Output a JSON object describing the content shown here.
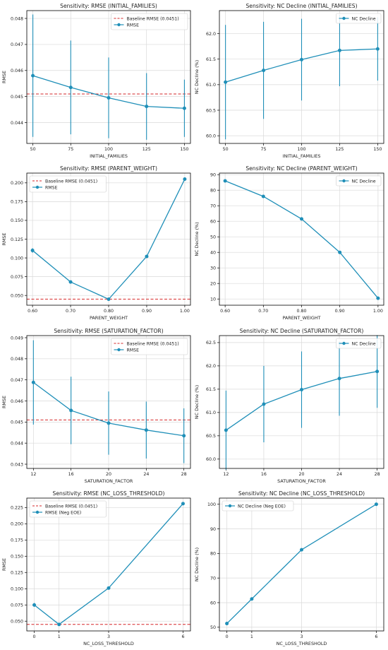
{
  "colors": {
    "line": "#1f8fb8",
    "baseline": "#d62728",
    "grid": "#d9d9d9",
    "axis": "#000000"
  },
  "chart_data": [
    {
      "type": "line",
      "title": "Sensitivity: RMSE (INITIAL_FAMILIES)",
      "xlabel": "INITIAL_FAMILIES",
      "ylabel": "RMSE",
      "x": [
        50,
        75,
        100,
        125,
        150
      ],
      "xticks": [
        50,
        75,
        100,
        125,
        150
      ],
      "xlim": [
        46,
        154
      ],
      "ylim": [
        0.0432,
        0.0483
      ],
      "yticks": [
        0.044,
        0.045,
        0.046,
        0.047,
        0.048
      ],
      "ytick_labels": [
        "0.044",
        "0.045",
        "0.046",
        "0.047",
        "0.048"
      ],
      "grid": true,
      "legend": "top-right",
      "baseline": {
        "value": 0.0451,
        "label": "Baseline RMSE (0.0451)"
      },
      "series": [
        {
          "name": "RMSE",
          "values": [
            0.0458,
            0.04535,
            0.04495,
            0.04462,
            0.04455
          ],
          "errors": [
            0.00235,
            0.0018,
            0.00155,
            0.00128,
            0.0011
          ]
        }
      ]
    },
    {
      "type": "line",
      "title": "Sensitivity: NC Decline (INITIAL_FAMILIES)",
      "xlabel": "INITIAL_FAMILIES",
      "ylabel": "NC Decline (%)",
      "x": [
        50,
        75,
        100,
        125,
        150
      ],
      "xticks": [
        50,
        75,
        100,
        125,
        150
      ],
      "xlim": [
        46,
        154
      ],
      "ylim": [
        59.85,
        62.45
      ],
      "yticks": [
        60.0,
        60.5,
        61.0,
        61.5,
        62.0
      ],
      "ytick_labels": [
        "60.0",
        "60.5",
        "61.0",
        "61.5",
        "62.0"
      ],
      "grid": true,
      "legend": "top-right",
      "series": [
        {
          "name": "NC Decline",
          "values": [
            61.05,
            61.28,
            61.49,
            61.67,
            61.7
          ],
          "errors": [
            1.12,
            0.95,
            0.8,
            0.7,
            0.62
          ]
        }
      ]
    },
    {
      "type": "line",
      "title": "Sensitivity: RMSE (PARENT_WEIGHT)",
      "xlabel": "PARENT_WEIGHT",
      "ylabel": "RMSE",
      "x": [
        0.6,
        0.7,
        0.8,
        0.9,
        1.0
      ],
      "xticks": [
        0.6,
        0.7,
        0.8,
        0.9,
        1.0
      ],
      "xtick_labels": [
        "0.60",
        "0.70",
        "0.80",
        "0.90",
        "1.00"
      ],
      "xlim": [
        0.585,
        1.015
      ],
      "ylim": [
        0.037,
        0.213
      ],
      "yticks": [
        0.05,
        0.075,
        0.1,
        0.125,
        0.15,
        0.175,
        0.2
      ],
      "ytick_labels": [
        "0.050",
        "0.075",
        "0.100",
        "0.125",
        "0.150",
        "0.175",
        "0.200"
      ],
      "grid": true,
      "legend": "top-left",
      "baseline": {
        "value": 0.0451,
        "label": "Baseline RMSE (0.0451)"
      },
      "series": [
        {
          "name": "RMSE",
          "values": [
            0.11,
            0.068,
            0.045,
            0.102,
            0.205
          ],
          "errors": [
            0.003,
            0.002,
            0.001,
            0.002,
            0.002
          ]
        }
      ]
    },
    {
      "type": "line",
      "title": "Sensitivity: NC Decline (PARENT_WEIGHT)",
      "xlabel": "PARENT_WEIGHT",
      "ylabel": "NC Decline (%)",
      "x": [
        0.6,
        0.7,
        0.8,
        0.9,
        1.0
      ],
      "xticks": [
        0.6,
        0.7,
        0.8,
        0.9,
        1.0
      ],
      "xtick_labels": [
        "0.60",
        "0.70",
        "0.80",
        "0.90",
        "1.00"
      ],
      "xlim": [
        0.585,
        1.015
      ],
      "ylim": [
        6,
        91
      ],
      "yticks": [
        10,
        20,
        30,
        40,
        50,
        60,
        70,
        80,
        90
      ],
      "ytick_labels": [
        "10",
        "20",
        "30",
        "40",
        "50",
        "60",
        "70",
        "80",
        "90"
      ],
      "grid": true,
      "legend": "top-right",
      "series": [
        {
          "name": "NC Decline",
          "values": [
            86,
            76,
            61.5,
            40,
            10.5
          ]
        }
      ]
    },
    {
      "type": "line",
      "title": "Sensitivity: RMSE (SATURATION_FACTOR)",
      "xlabel": "SATURATION_FACTOR",
      "ylabel": "RMSE",
      "x": [
        12,
        16,
        20,
        24,
        28
      ],
      "xticks": [
        12,
        16,
        20,
        24,
        28
      ],
      "xlim": [
        11.3,
        28.7
      ],
      "ylim": [
        0.0428,
        0.0491
      ],
      "yticks": [
        0.043,
        0.044,
        0.045,
        0.046,
        0.047,
        0.048,
        0.049
      ],
      "ytick_labels": [
        "0.043",
        "0.044",
        "0.045",
        "0.046",
        "0.047",
        "0.048",
        "0.049"
      ],
      "grid": true,
      "legend": "top-right",
      "baseline": {
        "value": 0.0451,
        "label": "Baseline RMSE (0.0451)"
      },
      "series": [
        {
          "name": "RMSE",
          "values": [
            0.04688,
            0.04555,
            0.04495,
            0.04462,
            0.04435
          ],
          "errors": [
            0.002,
            0.0016,
            0.0015,
            0.00135,
            0.0013
          ]
        }
      ]
    },
    {
      "type": "line",
      "title": "Sensitivity: NC Decline (SATURATION_FACTOR)",
      "xlabel": "SATURATION_FACTOR",
      "ylabel": "NC Decline (%)",
      "x": [
        12,
        16,
        20,
        24,
        28
      ],
      "xticks": [
        12,
        16,
        20,
        24,
        28
      ],
      "xlim": [
        11.3,
        28.7
      ],
      "ylim": [
        59.8,
        62.65
      ],
      "yticks": [
        60.0,
        60.5,
        61.0,
        61.5,
        62.0,
        62.5
      ],
      "ytick_labels": [
        "60.0",
        "60.5",
        "61.0",
        "61.5",
        "62.0",
        "62.5"
      ],
      "grid": true,
      "legend": "top-right",
      "series": [
        {
          "name": "NC Decline",
          "values": [
            60.62,
            61.18,
            61.49,
            61.73,
            61.88
          ],
          "errors": [
            0.85,
            0.82,
            0.82,
            0.8,
            0.78
          ]
        }
      ]
    },
    {
      "type": "line",
      "title": "Sensitivity: RMSE (NC_LOSS_THRESHOLD)",
      "xlabel": "NC_LOSS_THRESHOLD",
      "ylabel": "RMSE",
      "x": [
        0,
        1,
        3,
        6
      ],
      "xticks": [
        0,
        1,
        3,
        6
      ],
      "xlim": [
        -0.3,
        6.3
      ],
      "ylim": [
        0.035,
        0.2395
      ],
      "yticks": [
        0.05,
        0.075,
        0.1,
        0.125,
        0.15,
        0.175,
        0.2,
        0.225
      ],
      "ytick_labels": [
        "0.050",
        "0.075",
        "0.100",
        "0.125",
        "0.150",
        "0.175",
        "0.200",
        "0.225"
      ],
      "grid": true,
      "legend": "top-left",
      "baseline": {
        "value": 0.0451,
        "label": "Baseline RMSE (0.0451)"
      },
      "series": [
        {
          "name": "RMSE (Neg EOE)",
          "values": [
            0.075,
            0.045,
            0.101,
            0.231
          ],
          "errors": [
            0.003,
            0.001,
            0.001,
            0.002
          ]
        }
      ]
    },
    {
      "type": "line",
      "title": "Sensitivity: NC Decline (NC_LOSS_THRESHOLD)",
      "xlabel": "NC_LOSS_THRESHOLD",
      "ylabel": "NC Decline (%)",
      "x": [
        0,
        1,
        3,
        6
      ],
      "xticks": [
        0,
        1,
        3,
        6
      ],
      "xlim": [
        -0.3,
        6.3
      ],
      "ylim": [
        48.5,
        102.5
      ],
      "yticks": [
        50,
        60,
        70,
        80,
        90,
        100
      ],
      "ytick_labels": [
        "50",
        "60",
        "70",
        "80",
        "90",
        "100"
      ],
      "grid": true,
      "legend": "top-left",
      "series": [
        {
          "name": "NC Decline (Neg EOE)",
          "values": [
            51.5,
            61.5,
            81.5,
            100
          ]
        }
      ]
    }
  ]
}
